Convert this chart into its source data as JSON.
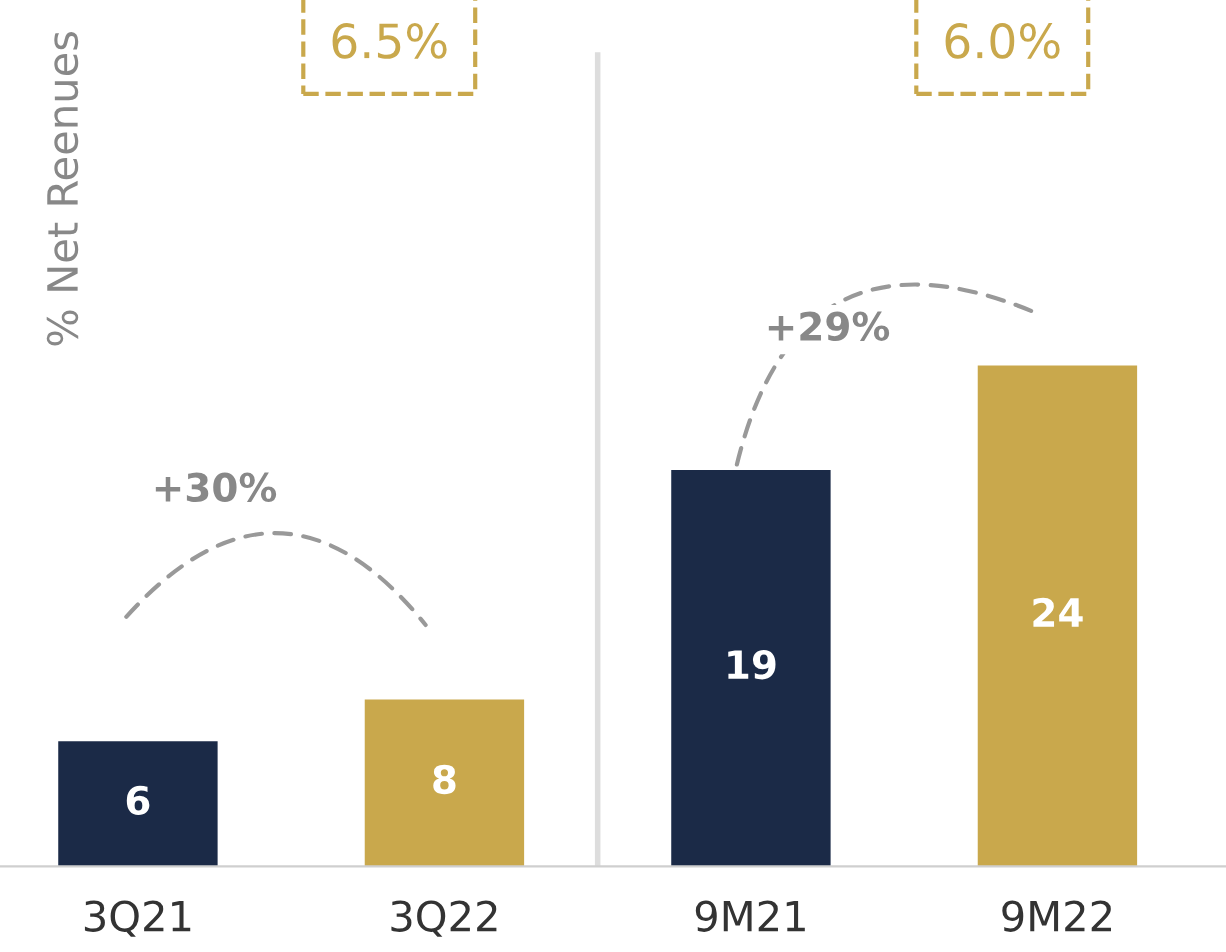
{
  "chart_data": {
    "type": "bar",
    "categories": [
      "3Q21",
      "3Q22",
      "9M21",
      "9M22"
    ],
    "values": [
      6,
      8,
      19,
      24
    ],
    "colors": [
      "#1b2a47",
      "#c9a84c",
      "#1b2a47",
      "#c9a84c"
    ],
    "data_labels": true,
    "grid": false,
    "tick_labels": "x",
    "annotations": [
      "% Net Reenues",
      "6.5%",
      "6.0%",
      "+30%",
      "+29%"
    ]
  }
}
